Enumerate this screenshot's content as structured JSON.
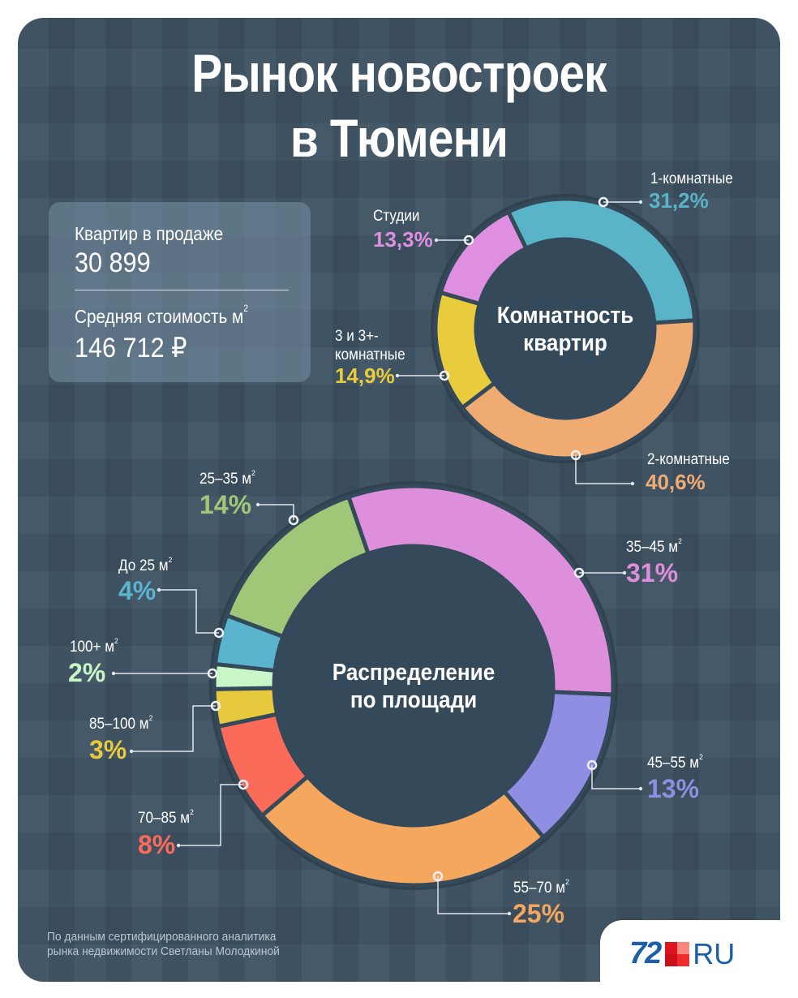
{
  "title": {
    "line1": "Рынок новостроек",
    "line2": "в Тюмени"
  },
  "stats": {
    "listings_label": "Квартир в продаже",
    "listings_value": "30 899",
    "avg_price_label": "Средняя стоимость м",
    "avg_price_sup": "2",
    "avg_price_value": "146 712 ₽"
  },
  "rooms_chart": {
    "title_line1": "Комнатность",
    "title_line2": "квартир",
    "segments": [
      {
        "label": "1-комнатные",
        "pct": "31,2%",
        "color": "#5ab4c8"
      },
      {
        "label": "2-комнатные",
        "pct": "40,6%",
        "color": "#efab72"
      },
      {
        "label": "3 и 3+-",
        "label2": "комнатные",
        "pct": "14,9%",
        "color": "#e8cc3c"
      },
      {
        "label": "Студии",
        "pct": "13,3%",
        "color": "#de8fdf"
      }
    ]
  },
  "area_chart": {
    "title_line1": "Распределение",
    "title_line2": "по площади",
    "unit": "м",
    "unit_sup": "2",
    "segments": [
      {
        "label": "35–45 м",
        "pct": "31%",
        "color": "#de8fdb"
      },
      {
        "label": "45–55 м",
        "pct": "13%",
        "color": "#8f8ee3"
      },
      {
        "label": "55–70 м",
        "pct": "25%",
        "color": "#f5a75e"
      },
      {
        "label": "70–85 м",
        "pct": "8%",
        "color": "#fb6b5a"
      },
      {
        "label": "85–100 м",
        "pct": "3%",
        "color": "#e6c93d"
      },
      {
        "label": "100+ м",
        "pct": "2%",
        "color": "#c9f6c6"
      },
      {
        "label": "До 25 м",
        "pct": "4%",
        "color": "#5ab4cd"
      },
      {
        "label": "25–35 м",
        "pct": "14%",
        "color": "#9fc777"
      }
    ]
  },
  "source": {
    "line1": "По данным сертифицированного аналитика",
    "line2": "рынка недвижимости Светланы Молодкиной"
  },
  "logo": {
    "number": "72",
    "suffix": "RU",
    "colors": [
      "#e0141e",
      "#f8877f",
      "#c90f1a",
      "#ee2c2c"
    ]
  },
  "chart_data": [
    {
      "type": "pie",
      "title": "Комнатность квартир",
      "categories": [
        "1-комнатные",
        "2-комнатные",
        "3 и 3+-комнатные",
        "Студии"
      ],
      "values": [
        31.2,
        40.6,
        14.9,
        13.3
      ],
      "unit": "%",
      "donut": true
    },
    {
      "type": "pie",
      "title": "Распределение по площади",
      "categories": [
        "35–45 м²",
        "45–55 м²",
        "55–70 м²",
        "70–85 м²",
        "85–100 м²",
        "100+ м²",
        "До 25 м²",
        "25–35 м²"
      ],
      "values": [
        31,
        13,
        25,
        8,
        3,
        2,
        4,
        14
      ],
      "unit": "%",
      "donut": true
    }
  ]
}
